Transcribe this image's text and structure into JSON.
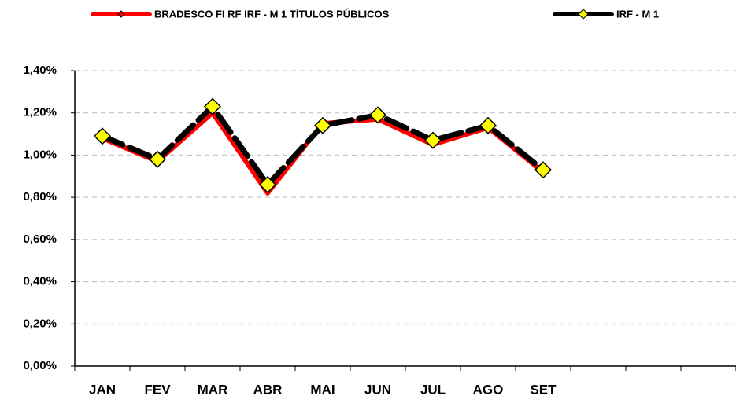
{
  "chart_data": {
    "type": "line",
    "categories": [
      "JAN",
      "FEV",
      "MAR",
      "ABR",
      "MAI",
      "JUN",
      "JUL",
      "AGO",
      "SET",
      null,
      null,
      null
    ],
    "series": [
      {
        "name": "BRADESCO FI RF IRF - M 1 TÍTULOS PÚBLICOS",
        "color": "#ff0000",
        "marker_color": "#ff0000",
        "values": [
          1.08,
          0.97,
          1.2,
          0.82,
          1.15,
          1.17,
          1.05,
          1.13,
          0.92,
          null,
          null,
          null
        ]
      },
      {
        "name": "IRF - M 1",
        "color": "#000000",
        "marker_color": "#ffff00",
        "values": [
          1.09,
          0.98,
          1.23,
          0.86,
          1.14,
          1.19,
          1.07,
          1.14,
          0.93,
          null,
          null,
          null
        ]
      }
    ],
    "ylim": [
      0,
      1.4
    ],
    "yticks": [
      {
        "value": 0,
        "label": "0,00%"
      },
      {
        "value": 0.2,
        "label": "0,20%"
      },
      {
        "value": 0.4,
        "label": "0,40%"
      },
      {
        "value": 0.6,
        "label": "0,60%"
      },
      {
        "value": 0.8,
        "label": "0,80%"
      },
      {
        "value": 1.0,
        "label": "1,00%"
      },
      {
        "value": 1.2,
        "label": "1,20%"
      },
      {
        "value": 1.4,
        "label": "1,40%"
      }
    ],
    "grid": true,
    "legend": "top"
  }
}
